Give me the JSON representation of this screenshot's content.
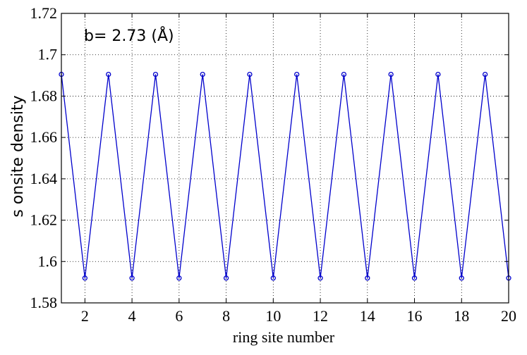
{
  "chart_data": {
    "type": "line",
    "title": "",
    "xlabel": "ring site number",
    "ylabel": "s onsite density",
    "annotation": "b= 2.73 (Å)",
    "xlim": [
      1,
      20
    ],
    "ylim": [
      1.58,
      1.72
    ],
    "x_ticks": [
      2,
      4,
      6,
      8,
      10,
      12,
      14,
      16,
      18,
      20
    ],
    "y_ticks": [
      1.58,
      1.6,
      1.62,
      1.64,
      1.66,
      1.68,
      1.7,
      1.72
    ],
    "x_tick_labels": [
      "2",
      "4",
      "6",
      "8",
      "10",
      "12",
      "14",
      "16",
      "18",
      "20"
    ],
    "y_tick_labels": [
      "1.58",
      "1.6",
      "1.62",
      "1.64",
      "1.66",
      "1.68",
      "1.7",
      "1.72"
    ],
    "grid": true,
    "series": [
      {
        "color": "#0000cc",
        "marker": "circle",
        "x": [
          1,
          2,
          3,
          4,
          5,
          6,
          7,
          8,
          9,
          10,
          11,
          12,
          13,
          14,
          15,
          16,
          17,
          18,
          19,
          20
        ],
        "y": [
          1.6905,
          1.592,
          1.6905,
          1.592,
          1.6905,
          1.592,
          1.6905,
          1.592,
          1.6905,
          1.592,
          1.6905,
          1.592,
          1.6905,
          1.592,
          1.6905,
          1.592,
          1.6905,
          1.592,
          1.6905,
          1.592
        ]
      }
    ]
  }
}
